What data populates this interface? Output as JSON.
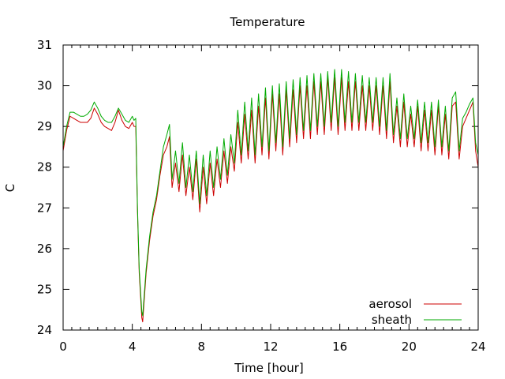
{
  "chart_data": {
    "type": "line",
    "title": "Temperature",
    "xlabel": "Time [hour]",
    "ylabel": "C",
    "xlim": [
      0,
      24
    ],
    "ylim": [
      24,
      31
    ],
    "xticks": [
      0,
      4,
      8,
      12,
      16,
      20,
      24
    ],
    "yticks": [
      24,
      25,
      26,
      27,
      28,
      29,
      30,
      31
    ],
    "xtick_labels": [
      "0",
      "4",
      "8",
      "12",
      "16",
      "20",
      "24"
    ],
    "ytick_labels": [
      "24",
      "25",
      "26",
      "27",
      "28",
      "29",
      "30",
      "31"
    ],
    "grid": false,
    "legend_position": "bottom-right",
    "series": [
      {
        "name": "aerosol",
        "color": "#cc0000",
        "points": [
          [
            0.0,
            28.4
          ],
          [
            0.2,
            28.9
          ],
          [
            0.4,
            29.25
          ],
          [
            0.6,
            29.2
          ],
          [
            0.8,
            29.15
          ],
          [
            1.0,
            29.1
          ],
          [
            1.2,
            29.1
          ],
          [
            1.4,
            29.1
          ],
          [
            1.6,
            29.2
          ],
          [
            1.8,
            29.45
          ],
          [
            2.0,
            29.3
          ],
          [
            2.2,
            29.1
          ],
          [
            2.4,
            29.0
          ],
          [
            2.6,
            28.95
          ],
          [
            2.8,
            28.9
          ],
          [
            3.0,
            29.1
          ],
          [
            3.2,
            29.4
          ],
          [
            3.4,
            29.15
          ],
          [
            3.6,
            29.0
          ],
          [
            3.8,
            28.95
          ],
          [
            4.0,
            29.1
          ],
          [
            4.1,
            29.0
          ],
          [
            4.2,
            29.0
          ],
          [
            4.3,
            26.9
          ],
          [
            4.4,
            25.4
          ],
          [
            4.55,
            24.3
          ],
          [
            4.6,
            24.2
          ],
          [
            4.8,
            25.4
          ],
          [
            5.0,
            26.2
          ],
          [
            5.2,
            26.8
          ],
          [
            5.4,
            27.2
          ],
          [
            5.6,
            27.8
          ],
          [
            5.8,
            28.3
          ],
          [
            6.0,
            28.5
          ],
          [
            6.15,
            28.75
          ],
          [
            6.3,
            27.5
          ],
          [
            6.5,
            28.1
          ],
          [
            6.7,
            27.4
          ],
          [
            6.9,
            28.3
          ],
          [
            7.1,
            27.3
          ],
          [
            7.3,
            28.0
          ],
          [
            7.5,
            27.2
          ],
          [
            7.7,
            28.2
          ],
          [
            7.9,
            26.9
          ],
          [
            8.1,
            28.0
          ],
          [
            8.3,
            27.1
          ],
          [
            8.5,
            28.1
          ],
          [
            8.7,
            27.3
          ],
          [
            8.9,
            28.2
          ],
          [
            9.1,
            27.5
          ],
          [
            9.3,
            28.4
          ],
          [
            9.5,
            27.6
          ],
          [
            9.7,
            28.5
          ],
          [
            9.9,
            27.9
          ],
          [
            10.1,
            29.1
          ],
          [
            10.3,
            28.1
          ],
          [
            10.5,
            29.3
          ],
          [
            10.7,
            28.2
          ],
          [
            10.9,
            29.4
          ],
          [
            11.1,
            28.1
          ],
          [
            11.3,
            29.5
          ],
          [
            11.5,
            28.3
          ],
          [
            11.7,
            29.7
          ],
          [
            11.9,
            28.2
          ],
          [
            12.1,
            29.8
          ],
          [
            12.3,
            28.4
          ],
          [
            12.5,
            29.8
          ],
          [
            12.7,
            28.3
          ],
          [
            12.9,
            29.9
          ],
          [
            13.1,
            28.5
          ],
          [
            13.3,
            29.9
          ],
          [
            13.5,
            28.6
          ],
          [
            13.7,
            30.0
          ],
          [
            13.9,
            28.7
          ],
          [
            14.1,
            30.0
          ],
          [
            14.3,
            28.7
          ],
          [
            14.5,
            30.1
          ],
          [
            14.7,
            28.8
          ],
          [
            14.9,
            30.1
          ],
          [
            15.1,
            28.8
          ],
          [
            15.3,
            30.2
          ],
          [
            15.5,
            28.9
          ],
          [
            15.7,
            30.2
          ],
          [
            15.9,
            28.8
          ],
          [
            16.1,
            30.2
          ],
          [
            16.3,
            28.9
          ],
          [
            16.5,
            30.1
          ],
          [
            16.7,
            28.9
          ],
          [
            16.9,
            30.1
          ],
          [
            17.1,
            28.9
          ],
          [
            17.3,
            30.0
          ],
          [
            17.5,
            28.9
          ],
          [
            17.7,
            30.0
          ],
          [
            17.9,
            28.9
          ],
          [
            18.1,
            30.0
          ],
          [
            18.3,
            28.8
          ],
          [
            18.5,
            30.0
          ],
          [
            18.7,
            28.7
          ],
          [
            18.9,
            30.1
          ],
          [
            19.1,
            28.6
          ],
          [
            19.3,
            29.5
          ],
          [
            19.5,
            28.5
          ],
          [
            19.7,
            29.6
          ],
          [
            19.9,
            28.5
          ],
          [
            20.1,
            29.3
          ],
          [
            20.3,
            28.5
          ],
          [
            20.5,
            29.5
          ],
          [
            20.7,
            28.4
          ],
          [
            20.9,
            29.4
          ],
          [
            21.1,
            28.4
          ],
          [
            21.3,
            29.4
          ],
          [
            21.5,
            28.3
          ],
          [
            21.7,
            29.5
          ],
          [
            21.9,
            28.3
          ],
          [
            22.1,
            29.3
          ],
          [
            22.3,
            28.2
          ],
          [
            22.5,
            29.5
          ],
          [
            22.7,
            29.6
          ],
          [
            22.9,
            28.2
          ],
          [
            23.1,
            29.0
          ],
          [
            23.3,
            29.2
          ],
          [
            23.5,
            29.4
          ],
          [
            23.7,
            29.6
          ],
          [
            23.85,
            28.4
          ],
          [
            24.0,
            28.0
          ]
        ]
      },
      {
        "name": "sheath",
        "color": "#00aa00",
        "points": [
          [
            0.0,
            28.5
          ],
          [
            0.2,
            29.0
          ],
          [
            0.4,
            29.35
          ],
          [
            0.6,
            29.35
          ],
          [
            0.8,
            29.3
          ],
          [
            1.0,
            29.25
          ],
          [
            1.2,
            29.25
          ],
          [
            1.4,
            29.3
          ],
          [
            1.6,
            29.4
          ],
          [
            1.8,
            29.6
          ],
          [
            2.0,
            29.45
          ],
          [
            2.2,
            29.25
          ],
          [
            2.4,
            29.15
          ],
          [
            2.6,
            29.1
          ],
          [
            2.8,
            29.1
          ],
          [
            3.0,
            29.25
          ],
          [
            3.2,
            29.45
          ],
          [
            3.4,
            29.3
          ],
          [
            3.6,
            29.15
          ],
          [
            3.8,
            29.1
          ],
          [
            4.0,
            29.25
          ],
          [
            4.1,
            29.15
          ],
          [
            4.2,
            29.2
          ],
          [
            4.3,
            27.0
          ],
          [
            4.4,
            25.5
          ],
          [
            4.55,
            24.45
          ],
          [
            4.6,
            24.35
          ],
          [
            4.8,
            25.5
          ],
          [
            5.0,
            26.3
          ],
          [
            5.2,
            26.9
          ],
          [
            5.4,
            27.3
          ],
          [
            5.6,
            27.9
          ],
          [
            5.8,
            28.5
          ],
          [
            6.0,
            28.8
          ],
          [
            6.15,
            29.05
          ],
          [
            6.3,
            27.7
          ],
          [
            6.5,
            28.4
          ],
          [
            6.7,
            27.6
          ],
          [
            6.9,
            28.6
          ],
          [
            7.1,
            27.5
          ],
          [
            7.3,
            28.3
          ],
          [
            7.5,
            27.4
          ],
          [
            7.7,
            28.4
          ],
          [
            7.9,
            27.1
          ],
          [
            8.1,
            28.3
          ],
          [
            8.3,
            27.3
          ],
          [
            8.5,
            28.4
          ],
          [
            8.7,
            27.5
          ],
          [
            8.9,
            28.5
          ],
          [
            9.1,
            27.7
          ],
          [
            9.3,
            28.7
          ],
          [
            9.5,
            27.8
          ],
          [
            9.7,
            28.8
          ],
          [
            9.9,
            28.1
          ],
          [
            10.1,
            29.4
          ],
          [
            10.3,
            28.3
          ],
          [
            10.5,
            29.6
          ],
          [
            10.7,
            28.4
          ],
          [
            10.9,
            29.7
          ],
          [
            11.1,
            28.3
          ],
          [
            11.3,
            29.8
          ],
          [
            11.5,
            28.5
          ],
          [
            11.7,
            29.95
          ],
          [
            11.9,
            28.4
          ],
          [
            12.1,
            30.0
          ],
          [
            12.3,
            28.6
          ],
          [
            12.5,
            30.05
          ],
          [
            12.7,
            28.5
          ],
          [
            12.9,
            30.1
          ],
          [
            13.1,
            28.7
          ],
          [
            13.3,
            30.15
          ],
          [
            13.5,
            28.8
          ],
          [
            13.7,
            30.2
          ],
          [
            13.9,
            28.9
          ],
          [
            14.1,
            30.25
          ],
          [
            14.3,
            28.9
          ],
          [
            14.5,
            30.3
          ],
          [
            14.7,
            29.0
          ],
          [
            14.9,
            30.3
          ],
          [
            15.1,
            29.0
          ],
          [
            15.3,
            30.35
          ],
          [
            15.5,
            29.1
          ],
          [
            15.7,
            30.4
          ],
          [
            15.9,
            29.0
          ],
          [
            16.1,
            30.4
          ],
          [
            16.3,
            29.1
          ],
          [
            16.5,
            30.35
          ],
          [
            16.7,
            29.1
          ],
          [
            16.9,
            30.3
          ],
          [
            17.1,
            29.1
          ],
          [
            17.3,
            30.25
          ],
          [
            17.5,
            29.1
          ],
          [
            17.7,
            30.2
          ],
          [
            17.9,
            29.1
          ],
          [
            18.1,
            30.2
          ],
          [
            18.3,
            29.0
          ],
          [
            18.5,
            30.2
          ],
          [
            18.7,
            28.9
          ],
          [
            18.9,
            30.3
          ],
          [
            19.1,
            28.8
          ],
          [
            19.3,
            29.7
          ],
          [
            19.5,
            28.7
          ],
          [
            19.7,
            29.8
          ],
          [
            19.9,
            28.7
          ],
          [
            20.1,
            29.5
          ],
          [
            20.3,
            28.7
          ],
          [
            20.5,
            29.65
          ],
          [
            20.7,
            28.6
          ],
          [
            20.9,
            29.6
          ],
          [
            21.1,
            28.6
          ],
          [
            21.3,
            29.6
          ],
          [
            21.5,
            28.5
          ],
          [
            21.7,
            29.65
          ],
          [
            21.9,
            28.5
          ],
          [
            22.1,
            29.5
          ],
          [
            22.3,
            28.4
          ],
          [
            22.5,
            29.7
          ],
          [
            22.7,
            29.85
          ],
          [
            22.9,
            28.4
          ],
          [
            23.1,
            29.2
          ],
          [
            23.3,
            29.35
          ],
          [
            23.5,
            29.55
          ],
          [
            23.7,
            29.7
          ],
          [
            23.85,
            28.6
          ],
          [
            24.0,
            28.3
          ]
        ]
      }
    ]
  }
}
